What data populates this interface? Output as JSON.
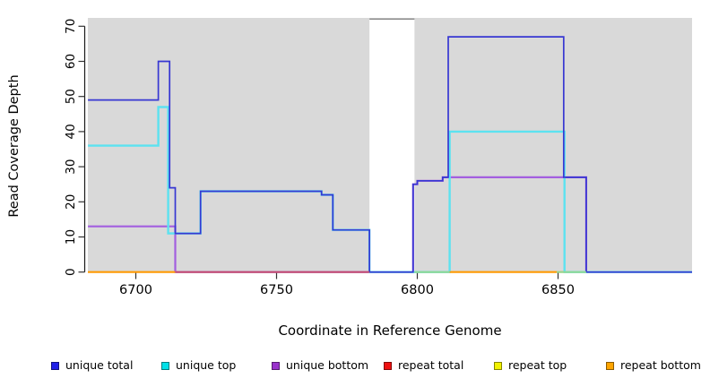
{
  "chart_data": {
    "type": "line",
    "subtype": "step-coverage",
    "title": "",
    "xlabel": "Coordinate in Reference Genome",
    "ylabel": "Read Coverage Depth",
    "x_ticks": [
      6700,
      6750,
      6800,
      6850
    ],
    "y_ticks": [
      0,
      10,
      20,
      30,
      40,
      50,
      60,
      70
    ],
    "xlim": [
      6683,
      6897.6
    ],
    "ylim": [
      0,
      72.4
    ],
    "grid": "off",
    "plot_background": "#D9D9D9",
    "gap_region": {
      "start": 6783,
      "end": 6799,
      "fill": "#FFFFFF",
      "border_top": "#8C8C8C"
    },
    "series": [
      {
        "name": "repeat total",
        "color": "#DD2222",
        "width": 1.5,
        "points": [
          [
            6683,
            0
          ]
        ],
        "x_end": 6897.6
      },
      {
        "name": "repeat top",
        "color": "#EEEE22",
        "width": 1.5,
        "points": [
          [
            6683,
            0
          ]
        ],
        "x_end": 6897.6
      },
      {
        "name": "repeat bottom",
        "color": "#FF9900",
        "width": 1.8,
        "points": [
          [
            6683,
            0
          ]
        ],
        "x_end": 6897.6
      },
      {
        "name": "unique bottom",
        "color": "#A35FDF",
        "width": 2.2,
        "points": [
          [
            6683,
            13
          ],
          [
            6714,
            0
          ],
          [
            6798.5,
            25
          ],
          [
            6800,
            26
          ],
          [
            6809,
            27
          ],
          [
            6860,
            0
          ]
        ],
        "x_end": 6897.6
      },
      {
        "name": "unique top",
        "color": "#5CE2F0",
        "width": 2.4,
        "points": [
          [
            6683,
            36
          ],
          [
            6708,
            47
          ],
          [
            6711.5,
            11
          ],
          [
            6723,
            23
          ],
          [
            6766,
            22
          ],
          [
            6770,
            12
          ],
          [
            6783,
            0
          ],
          [
            6811.5,
            40
          ],
          [
            6852.3,
            0
          ]
        ],
        "x_end": 6897.6
      },
      {
        "name": "unique total",
        "color": "#3737D2",
        "width": 1.7,
        "points": [
          [
            6683,
            49
          ],
          [
            6708,
            60
          ],
          [
            6712,
            24
          ],
          [
            6714,
            11
          ],
          [
            6723,
            23
          ],
          [
            6766,
            22
          ],
          [
            6770,
            12
          ],
          [
            6783,
            0
          ],
          [
            6798.5,
            25
          ],
          [
            6800,
            26
          ],
          [
            6809,
            27
          ],
          [
            6811,
            67
          ],
          [
            6852,
            27
          ],
          [
            6860,
            0
          ]
        ],
        "x_end": 6897.6
      }
    ],
    "zero_overlays": [
      {
        "color": "#FF9900",
        "from": 6683,
        "to": 6714
      },
      {
        "color": "#C4496F",
        "from": 6714,
        "to": 6783
      },
      {
        "color": "#90D890",
        "from": 6799,
        "to": 6811.5
      },
      {
        "color": "#FF9900",
        "from": 6811.5,
        "to": 6849.5
      },
      {
        "color": "#90D890",
        "from": 6849.5,
        "to": 6860
      }
    ]
  },
  "xlabel": "Coordinate in Reference Genome",
  "ylabel": "Read Coverage Depth",
  "legend": {
    "items": [
      {
        "label": "unique total",
        "color": "#1F1FE8"
      },
      {
        "label": "unique top",
        "color": "#00E0E8"
      },
      {
        "label": "unique bottom",
        "color": "#9932CC"
      },
      {
        "label": "repeat total",
        "color": "#EE1111"
      },
      {
        "label": "repeat top",
        "color": "#F2F200"
      },
      {
        "label": "repeat bottom",
        "color": "#FFA500"
      }
    ]
  }
}
